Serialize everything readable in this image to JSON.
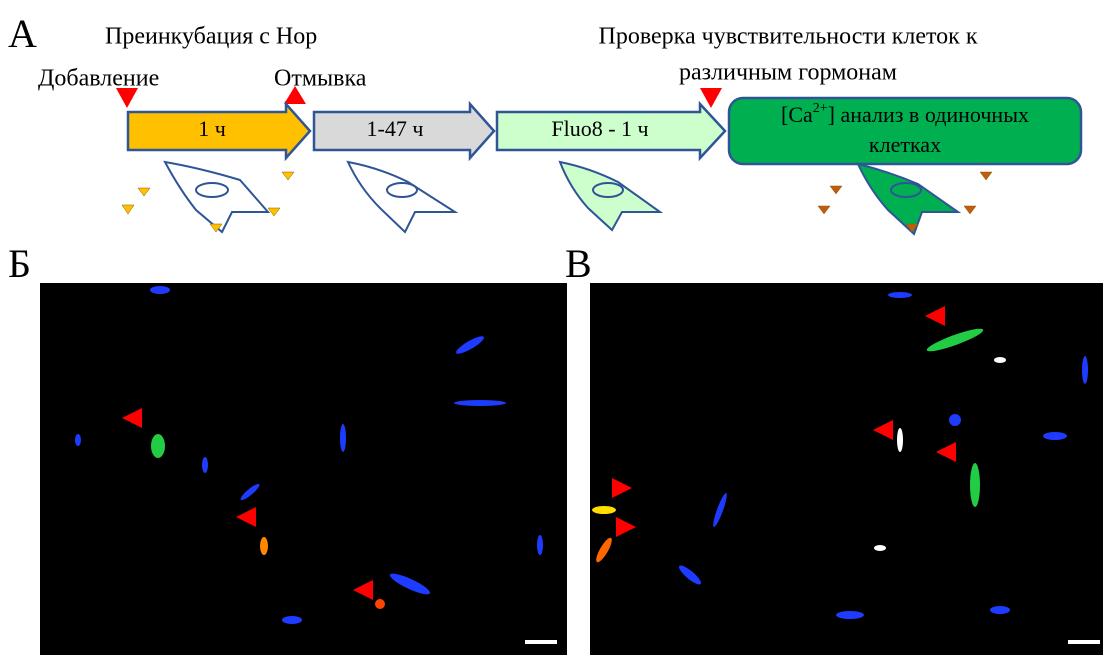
{
  "panel_a": {
    "letter": "А",
    "preincubation": "Преинкубация с Нор",
    "add": "Добавление",
    "wash": "Отмывка",
    "test_lines": [
      "Проверка чувствительности клеток к",
      "различным гормонам"
    ],
    "steps": [
      "1 ч",
      "1-47 ч",
      "Fluo8 - 1 ч"
    ],
    "analysis": {
      "prefix": "[Ca",
      "sup": "2+",
      "suffix": "] анализ в одиночных",
      "line2": "клетках"
    }
  },
  "panel_b": {
    "letter": "Б"
  },
  "panel_c": {
    "letter": "В"
  }
}
